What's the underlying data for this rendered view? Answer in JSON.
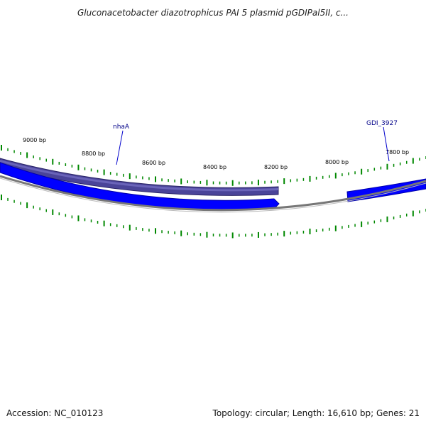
{
  "header": {
    "title": "Gluconacetobacter diazotrophicus PAI 5 plasmid pGDIPal5II, c..."
  },
  "footer": {
    "accession": "Accession: NC_010123",
    "summary": "Topology: circular; Length: 16,610 bp; Genes: 21"
  },
  "map": {
    "scale_labels": [
      "9000 bp",
      "8800 bp",
      "8600 bp",
      "8400 bp",
      "8200 bp",
      "8000 bp",
      "7800 bp"
    ],
    "gene_labels": [
      "nhaA",
      "GDI_3927"
    ]
  },
  "colors": {
    "forward_gene": "#0000ff",
    "reverse_gene": "#4a4499",
    "backbone": "#777777",
    "tick": "#008800",
    "label_line": "#0000cc"
  }
}
